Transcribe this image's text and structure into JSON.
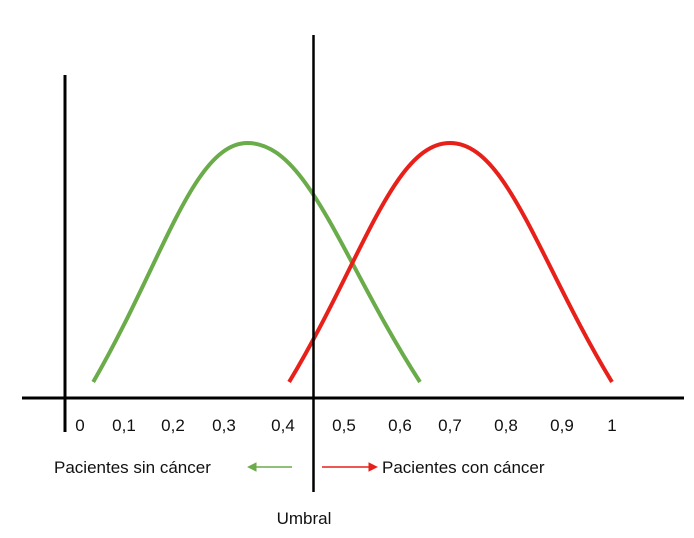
{
  "diagram": {
    "x_ticks": [
      "0",
      "0,1",
      "0,2",
      "0,3",
      "0,4",
      "0,5",
      "0,6",
      "0,7",
      "0,8",
      "0,9",
      "1"
    ],
    "threshold": {
      "label": "Umbral",
      "value": 0.45
    },
    "curves": [
      {
        "id": "sin-cancer",
        "color": "#6aab4a",
        "start": 0.03,
        "peak": 0.34,
        "end": 0.64
      },
      {
        "id": "con-cancer",
        "color": "#e8201a",
        "start": 0.41,
        "peak": 0.7,
        "end": 1.0
      }
    ],
    "legend": {
      "left": {
        "text": "Pacientes sin cáncer",
        "color": "#6aab4a"
      },
      "right": {
        "text": "Pacientes con cáncer",
        "color": "#e8201a"
      }
    }
  }
}
